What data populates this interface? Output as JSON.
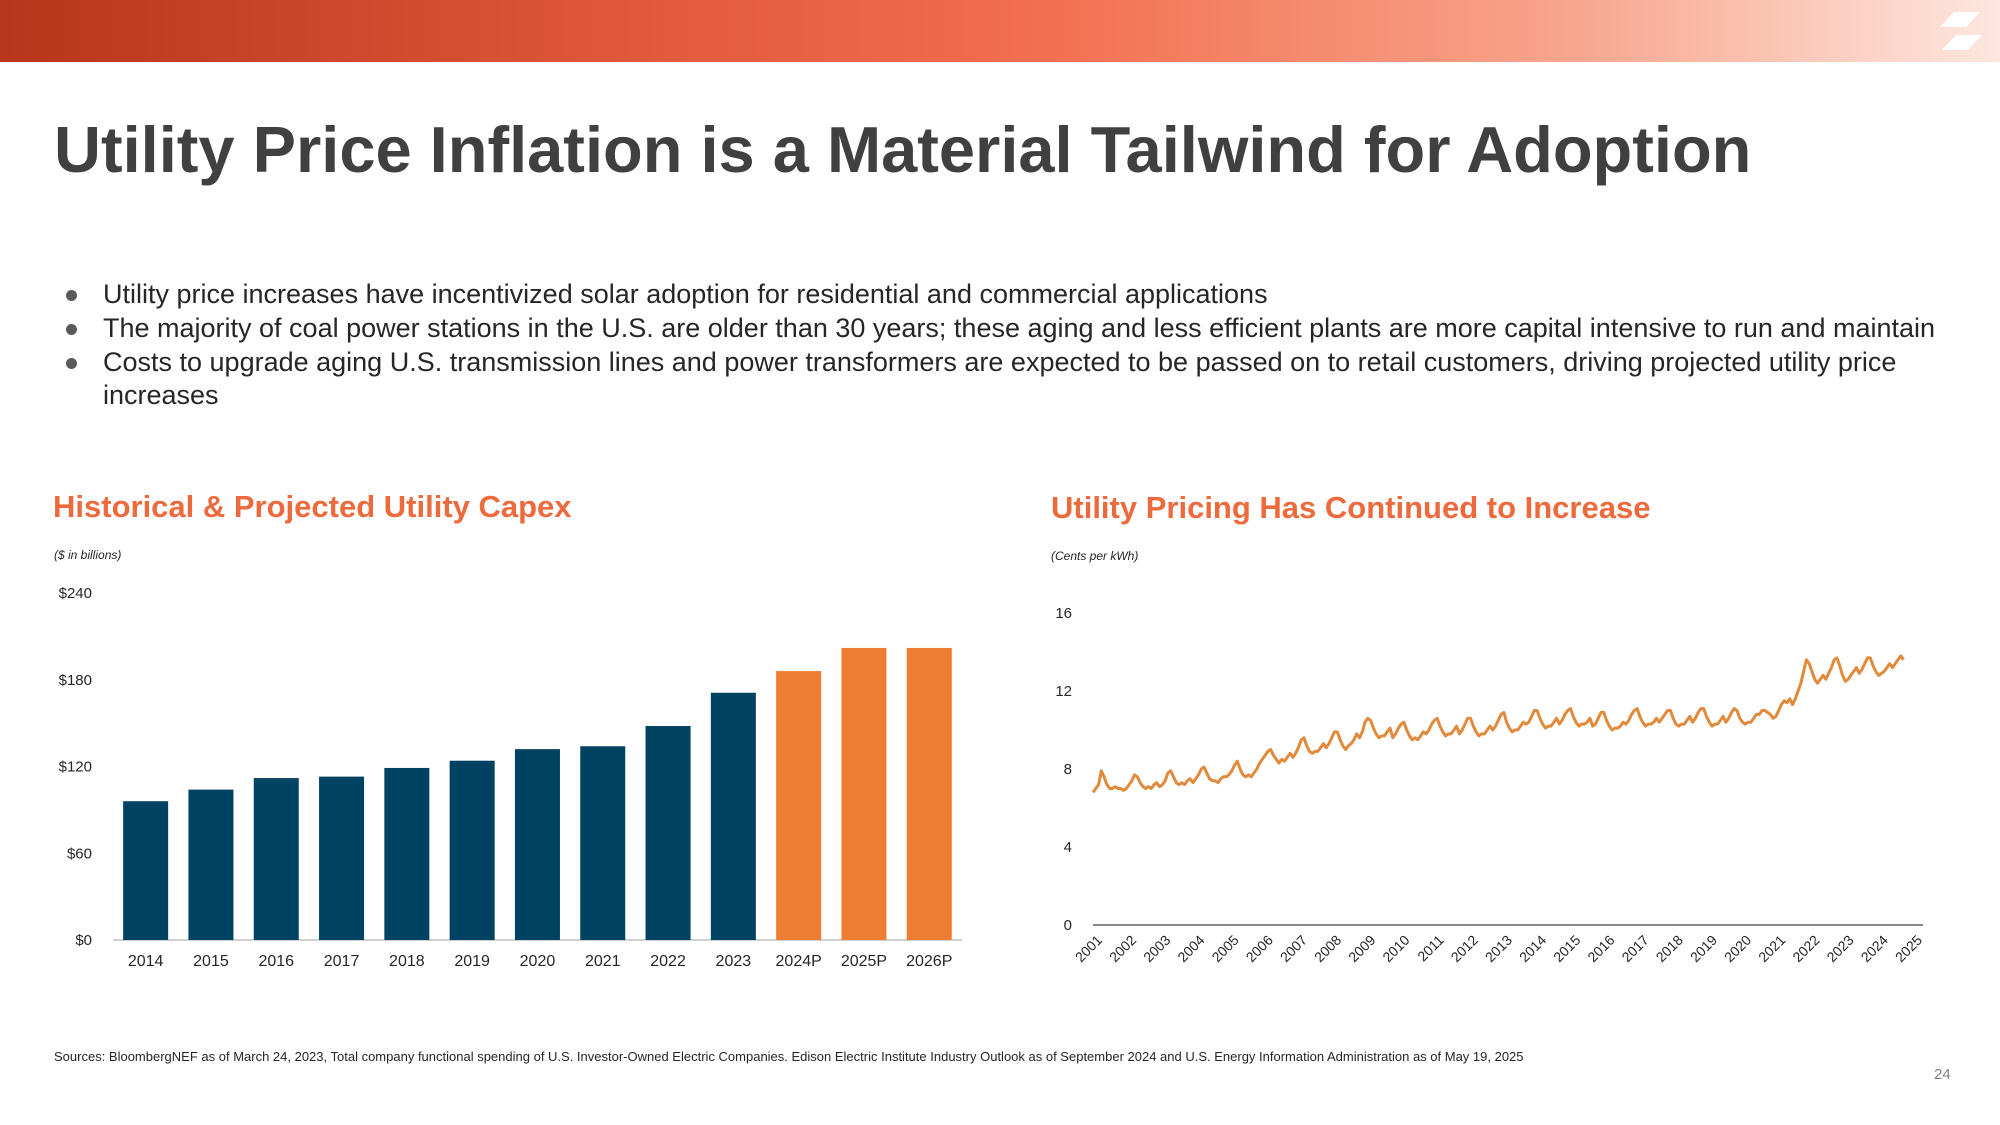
{
  "title": "Utility Price Inflation is a Material Tailwind for Adoption",
  "bullets": [
    "Utility price increases have incentivized solar adoption for residential and commercial applications",
    "The majority of coal power stations in the U.S. are older than 30 years; these aging and less efficient plants are more capital intensive to run and maintain",
    "Costs to upgrade aging U.S. transmission lines and power transformers are expected to be passed on to retail customers, driving projected utility price increases"
  ],
  "left_chart": {
    "title": "Historical & Projected Utility Capex",
    "subtitle": "($ in billions)"
  },
  "right_chart": {
    "title": "Utility Pricing Has Continued to Increase",
    "subtitle": "(Cents per kWh)"
  },
  "footer": {
    "sources": "Sources:  BloombergNEF as of March 24, 2023, Total company functional spending of U.S. Investor-Owned Electric Companies. Edison Electric Institute Industry Outlook as of September 2024 and U.S. Energy Information Administration as of May 19, 2025"
  },
  "page_number": "24",
  "colors": {
    "actual": "#004261",
    "projected": "#ec7d31",
    "line": "#e18a3c",
    "title_accent": "#ec6a3c"
  },
  "icons": {
    "logo": "brand-logo-icon",
    "bullet": "bullet-dot-icon"
  },
  "chart_data": [
    {
      "type": "bar",
      "title": "Historical & Projected Utility Capex",
      "subtitle": "($ in billions)",
      "categories": [
        "2014",
        "2015",
        "2016",
        "2017",
        "2018",
        "2019",
        "2020",
        "2021",
        "2022",
        "2023",
        "2024P",
        "2025P",
        "2026P"
      ],
      "values": [
        96,
        104,
        112,
        113,
        119,
        124,
        132,
        134,
        148,
        171,
        186,
        202,
        202
      ],
      "projected": [
        false,
        false,
        false,
        false,
        false,
        false,
        false,
        false,
        false,
        false,
        true,
        true,
        true
      ],
      "ylim": [
        0,
        240
      ],
      "yticks": [
        0,
        60,
        120,
        180,
        240
      ],
      "ytick_labels": [
        "$0",
        "$60",
        "$120",
        "$180",
        "$240"
      ],
      "grid": false,
      "legend": "none"
    },
    {
      "type": "line",
      "title": "Utility Pricing Has Continued to Increase",
      "subtitle": "(Cents per kWh)",
      "x_labels": [
        "2001",
        "2002",
        "2003",
        "2004",
        "2005",
        "2006",
        "2007",
        "2008",
        "2009",
        "2010",
        "2011",
        "2012",
        "2013",
        "2014",
        "2015",
        "2016",
        "2017",
        "2018",
        "2019",
        "2020",
        "2021",
        "2022",
        "2023",
        "2024",
        "2025"
      ],
      "annual_values": [
        [
          6.8,
          7.0,
          7.2,
          7.9,
          7.6,
          7.2,
          7.0,
          7.0,
          7.1,
          7.0,
          7.0,
          6.9
        ],
        [
          7.0,
          7.2,
          7.4,
          7.7,
          7.6,
          7.3,
          7.1,
          7.0,
          7.1,
          7.0,
          7.2,
          7.3
        ],
        [
          7.1,
          7.2,
          7.4,
          7.8,
          7.9,
          7.6,
          7.3,
          7.2,
          7.3,
          7.2,
          7.4,
          7.5
        ],
        [
          7.3,
          7.5,
          7.7,
          8.0,
          8.1,
          7.8,
          7.5,
          7.4,
          7.4,
          7.3,
          7.5,
          7.6
        ],
        [
          7.6,
          7.7,
          7.9,
          8.2,
          8.4,
          8.0,
          7.7,
          7.6,
          7.7,
          7.6,
          7.8,
          8.0
        ],
        [
          8.3,
          8.5,
          8.7,
          8.9,
          9.0,
          8.7,
          8.5,
          8.3,
          8.5,
          8.4,
          8.6,
          8.8
        ],
        [
          8.6,
          8.8,
          9.1,
          9.5,
          9.6,
          9.2,
          8.9,
          8.8,
          8.9,
          8.9,
          9.1,
          9.3
        ],
        [
          9.1,
          9.3,
          9.6,
          9.9,
          9.9,
          9.5,
          9.2,
          9.0,
          9.2,
          9.3,
          9.5,
          9.8
        ],
        [
          9.6,
          9.9,
          10.4,
          10.6,
          10.5,
          10.1,
          9.8,
          9.6,
          9.7,
          9.7,
          9.9,
          10.1
        ],
        [
          9.6,
          9.8,
          10.1,
          10.3,
          10.4,
          10.0,
          9.7,
          9.5,
          9.6,
          9.5,
          9.7,
          9.9
        ],
        [
          9.8,
          10.0,
          10.3,
          10.5,
          10.6,
          10.2,
          9.9,
          9.7,
          9.8,
          9.8,
          10.0,
          10.2
        ],
        [
          9.8,
          10.0,
          10.3,
          10.6,
          10.6,
          10.2,
          9.9,
          9.7,
          9.8,
          9.8,
          10.0,
          10.2
        ],
        [
          10.0,
          10.2,
          10.5,
          10.8,
          10.9,
          10.4,
          10.1,
          9.9,
          10.0,
          10.0,
          10.2,
          10.4
        ],
        [
          10.3,
          10.4,
          10.7,
          11.0,
          11.0,
          10.6,
          10.3,
          10.1,
          10.2,
          10.2,
          10.4,
          10.6
        ],
        [
          10.3,
          10.5,
          10.8,
          11.0,
          11.1,
          10.7,
          10.4,
          10.2,
          10.3,
          10.3,
          10.4,
          10.6
        ],
        [
          10.2,
          10.3,
          10.6,
          10.9,
          10.9,
          10.5,
          10.2,
          10.0,
          10.1,
          10.1,
          10.2,
          10.4
        ],
        [
          10.3,
          10.5,
          10.8,
          11.0,
          11.1,
          10.7,
          10.4,
          10.2,
          10.3,
          10.3,
          10.4,
          10.6
        ],
        [
          10.4,
          10.6,
          10.8,
          11.0,
          11.0,
          10.6,
          10.3,
          10.2,
          10.3,
          10.3,
          10.5,
          10.7
        ],
        [
          10.4,
          10.6,
          10.9,
          11.1,
          11.1,
          10.7,
          10.4,
          10.2,
          10.3,
          10.3,
          10.5,
          10.7
        ],
        [
          10.4,
          10.6,
          10.9,
          11.1,
          11.0,
          10.6,
          10.4,
          10.3,
          10.4,
          10.4,
          10.6,
          10.8
        ],
        [
          10.8,
          11.0,
          11.0,
          10.9,
          10.8,
          10.6,
          10.7,
          11.0,
          11.3,
          11.5,
          11.4,
          11.6
        ],
        [
          11.3,
          11.6,
          12.0,
          12.4,
          13.0,
          13.6,
          13.4,
          13.0,
          12.6,
          12.4,
          12.6,
          12.8
        ],
        [
          12.6,
          12.9,
          13.2,
          13.6,
          13.7,
          13.3,
          12.8,
          12.5,
          12.6,
          12.8,
          13.0,
          13.2
        ],
        [
          12.9,
          13.1,
          13.4,
          13.7,
          13.7,
          13.3,
          13.0,
          12.8,
          12.9,
          13.0,
          13.2,
          13.4
        ],
        [
          13.2,
          13.4,
          13.6,
          13.8,
          13.6
        ]
      ],
      "ylim": [
        0,
        16
      ],
      "yticks": [
        0,
        4,
        8,
        12,
        16
      ],
      "grid": false,
      "legend": "none"
    }
  ]
}
